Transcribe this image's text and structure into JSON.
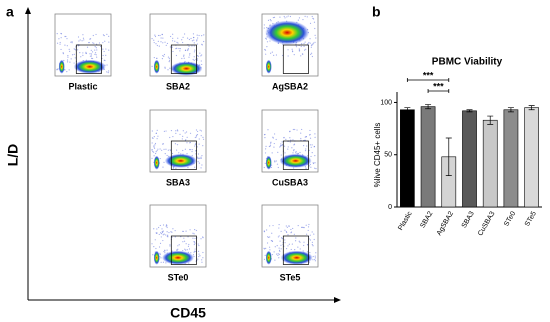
{
  "panel_a": {
    "label": "a",
    "y_axis_label": "L/D",
    "x_axis_label": "CD45",
    "plots": [
      "Plastic",
      "SBA2",
      "AgSBA2",
      "SBA3",
      "CuSBA3",
      "STe0",
      "STe5"
    ]
  },
  "chart_data": {
    "type": "bar",
    "panel_label": "b",
    "title": "PBMC Viability",
    "y_label": "%live CD45+ cells",
    "categories": [
      "Plastic",
      "SBA2",
      "AgSBA2",
      "SBA3",
      "CuSBA3",
      "STe0",
      "STe5"
    ],
    "values": [
      93,
      96,
      48,
      92,
      83,
      93,
      95
    ],
    "errors": [
      2,
      2,
      18,
      1,
      4,
      2,
      2
    ],
    "colors": [
      "#000000",
      "#7a7a7a",
      "#d4d4d4",
      "#595959",
      "#c8c8c8",
      "#8c8c8c",
      "#d9d9d9"
    ],
    "ylim": [
      0,
      110
    ],
    "yticks": [
      0,
      50,
      100
    ],
    "annotations": [
      "***",
      "***"
    ]
  }
}
